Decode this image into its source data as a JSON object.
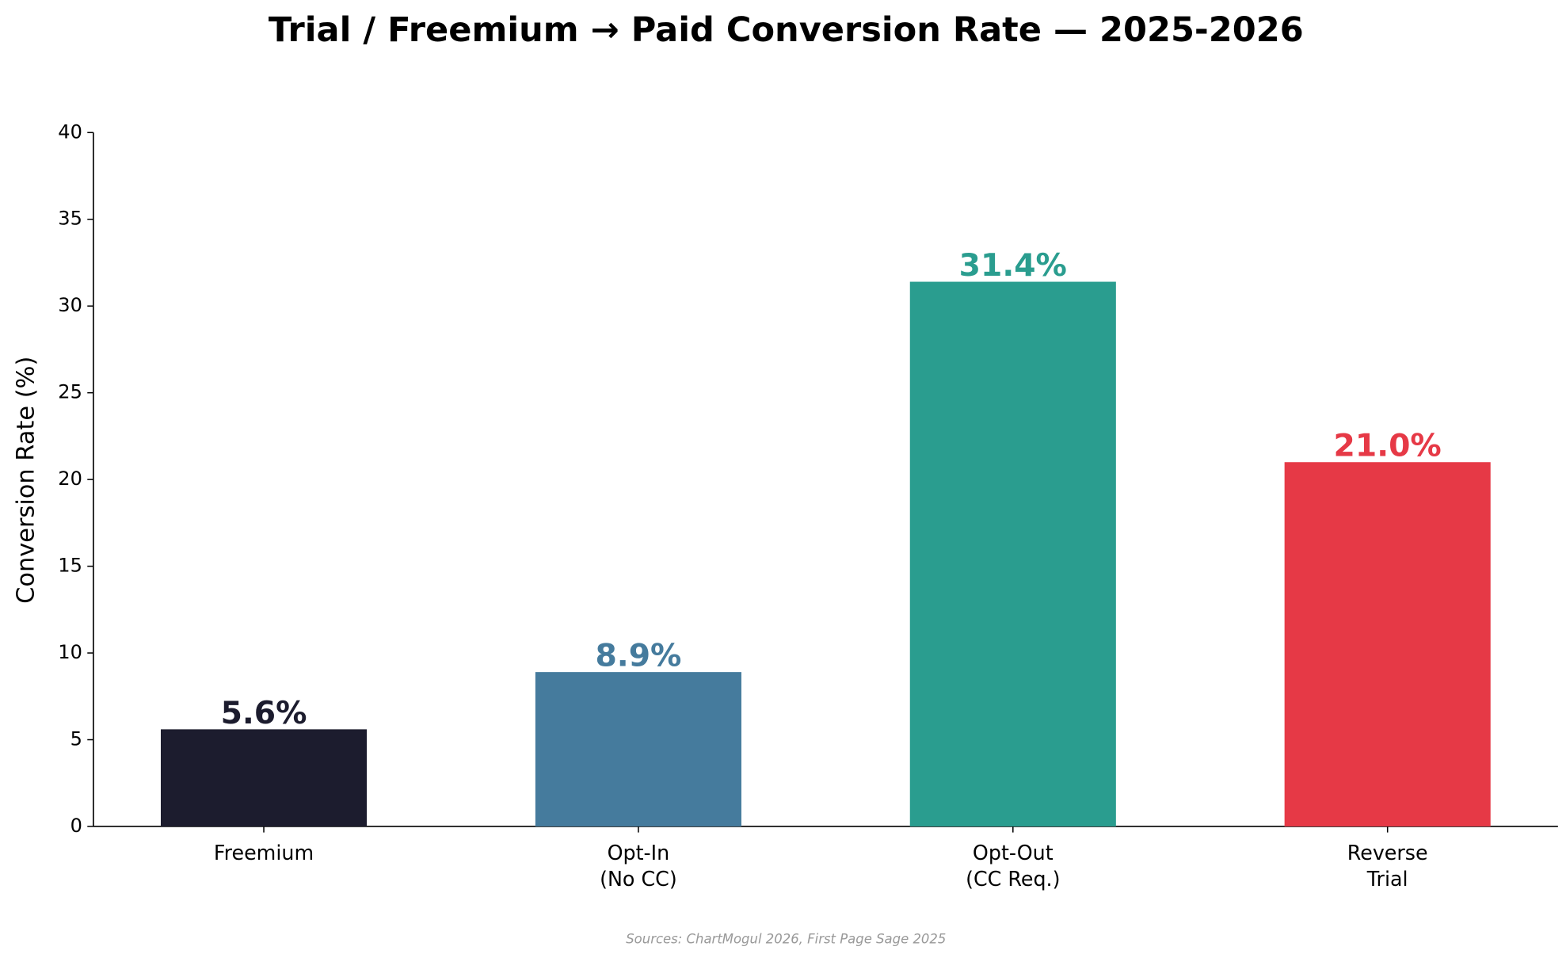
{
  "chart_data": {
    "type": "bar",
    "title": "Trial / Freemium → Paid Conversion Rate — 2025-2026",
    "y_label": "Conversion Rate (%)",
    "categories": [
      "Freemium",
      "Opt-In\n(No CC)",
      "Opt-Out\n(CC Req.)",
      "Reverse\nTrial"
    ],
    "values": [
      5.6,
      8.9,
      31.4,
      21.0
    ],
    "value_labels": [
      "5.6%",
      "8.9%",
      "31.4%",
      "21.0%"
    ],
    "colors": [
      "#1c1c2e",
      "#457b9d",
      "#2a9d8f",
      "#e63946"
    ],
    "ylim": [
      0,
      40
    ],
    "yticks": [
      0,
      5,
      10,
      15,
      20,
      25,
      30,
      35,
      40
    ],
    "grid": false,
    "source": "Sources: ChartMogul 2026, First Page Sage 2025"
  }
}
